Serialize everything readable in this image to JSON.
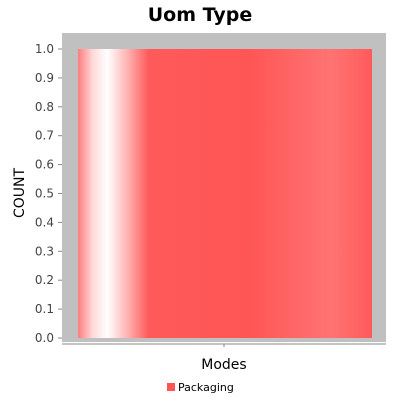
{
  "chart_data": {
    "type": "bar",
    "title": "Uom Type",
    "xlabel": "Modes",
    "ylabel": "COUNT",
    "ylim": [
      0,
      1.0
    ],
    "yticks": [
      "0.0",
      "0.1",
      "0.2",
      "0.3",
      "0.4",
      "0.5",
      "0.6",
      "0.7",
      "0.8",
      "0.9",
      "1.0"
    ],
    "categories": [
      ""
    ],
    "series": [
      {
        "name": "Packaging",
        "values": [
          1.0
        ],
        "color": "#ff5555"
      }
    ],
    "legend": "bottom-center",
    "grid": false,
    "plot_background": "#c0c0c0"
  }
}
